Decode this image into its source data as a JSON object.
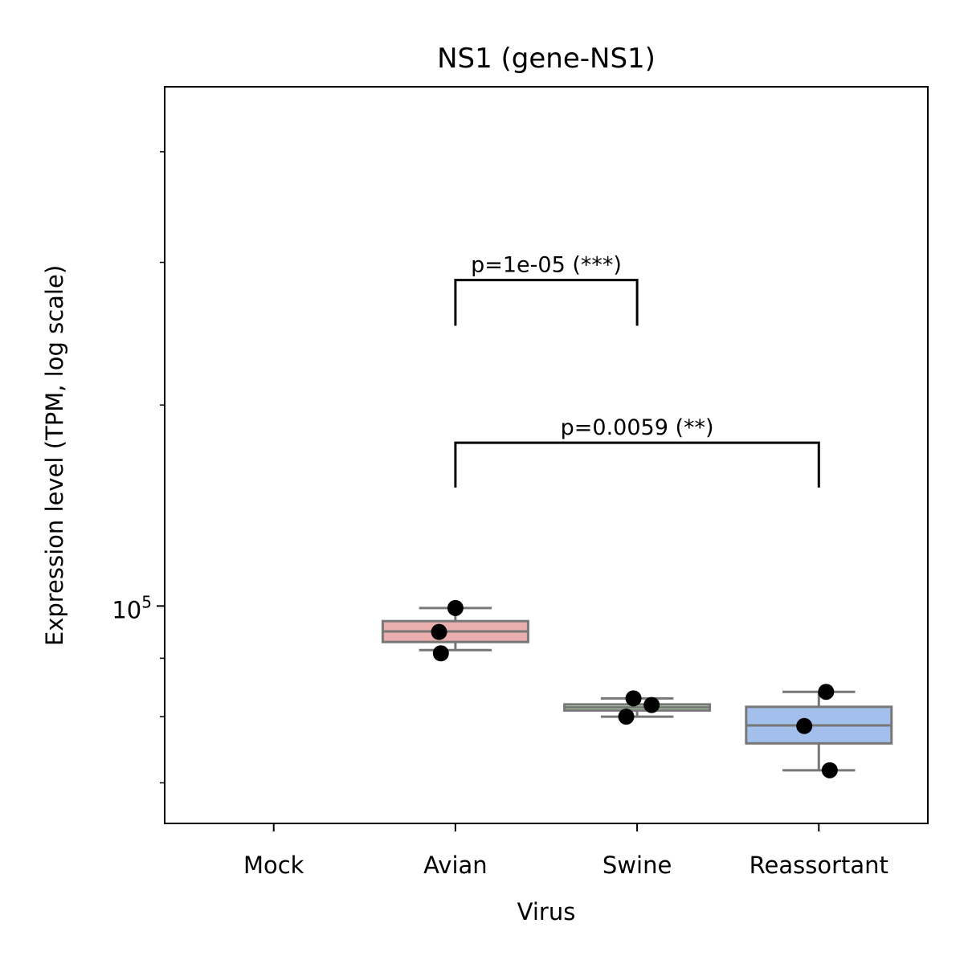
{
  "chart_data": {
    "type": "box",
    "title": "NS1 (gene-NS1)",
    "xlabel": "Virus",
    "ylabel": "Expression level (TPM, log scale)",
    "y_scale": "log",
    "ylim": [
      64500,
      285000
    ],
    "y_major_tick_labels": [
      {
        "value": 100000,
        "base": "10",
        "exponent": "5"
      }
    ],
    "y_minor_ticks": [
      70000,
      80000,
      90000,
      150000,
      200000,
      250000
    ],
    "grid": false,
    "categories": [
      "Mock",
      "Avian",
      "Swine",
      "Reassortant"
    ],
    "groups": [
      {
        "name": "Avian",
        "color": "#eaaeae",
        "box": {
          "whisker_low": 91500,
          "q1": 93000,
          "median": 95000,
          "q3": 97000,
          "whisker_high": 99600
        },
        "points": [
          {
            "dx": -0.09,
            "y": 94900
          },
          {
            "dx": 0.0,
            "y": 99600
          },
          {
            "dx": -0.08,
            "y": 90900
          }
        ]
      },
      {
        "name": "Swine",
        "color": "#b7e0b0",
        "box": {
          "whisker_low": 80000,
          "q1": 81000,
          "median": 81500,
          "q3": 82000,
          "whisker_high": 83000
        },
        "points": [
          {
            "dx": -0.02,
            "y": 83000
          },
          {
            "dx": 0.08,
            "y": 81900
          },
          {
            "dx": -0.06,
            "y": 80000
          }
        ]
      },
      {
        "name": "Reassortant",
        "color": "#a3bfeb",
        "box": {
          "whisker_low": 71800,
          "q1": 75800,
          "median": 78600,
          "q3": 81600,
          "whisker_high": 84100
        },
        "points": [
          {
            "dx": 0.04,
            "y": 84100
          },
          {
            "dx": -0.08,
            "y": 78500
          },
          {
            "dx": 0.06,
            "y": 71800
          }
        ]
      }
    ],
    "comparisons": [
      {
        "from": "Avian",
        "to": "Swine",
        "label": "p=1e-05 (***)",
        "y_bottom": 176000,
        "y_top": 193000
      },
      {
        "from": "Avian",
        "to": "Reassortant",
        "label": "p=0.0059 (**)",
        "y_bottom": 127000,
        "y_top": 139000
      }
    ]
  }
}
